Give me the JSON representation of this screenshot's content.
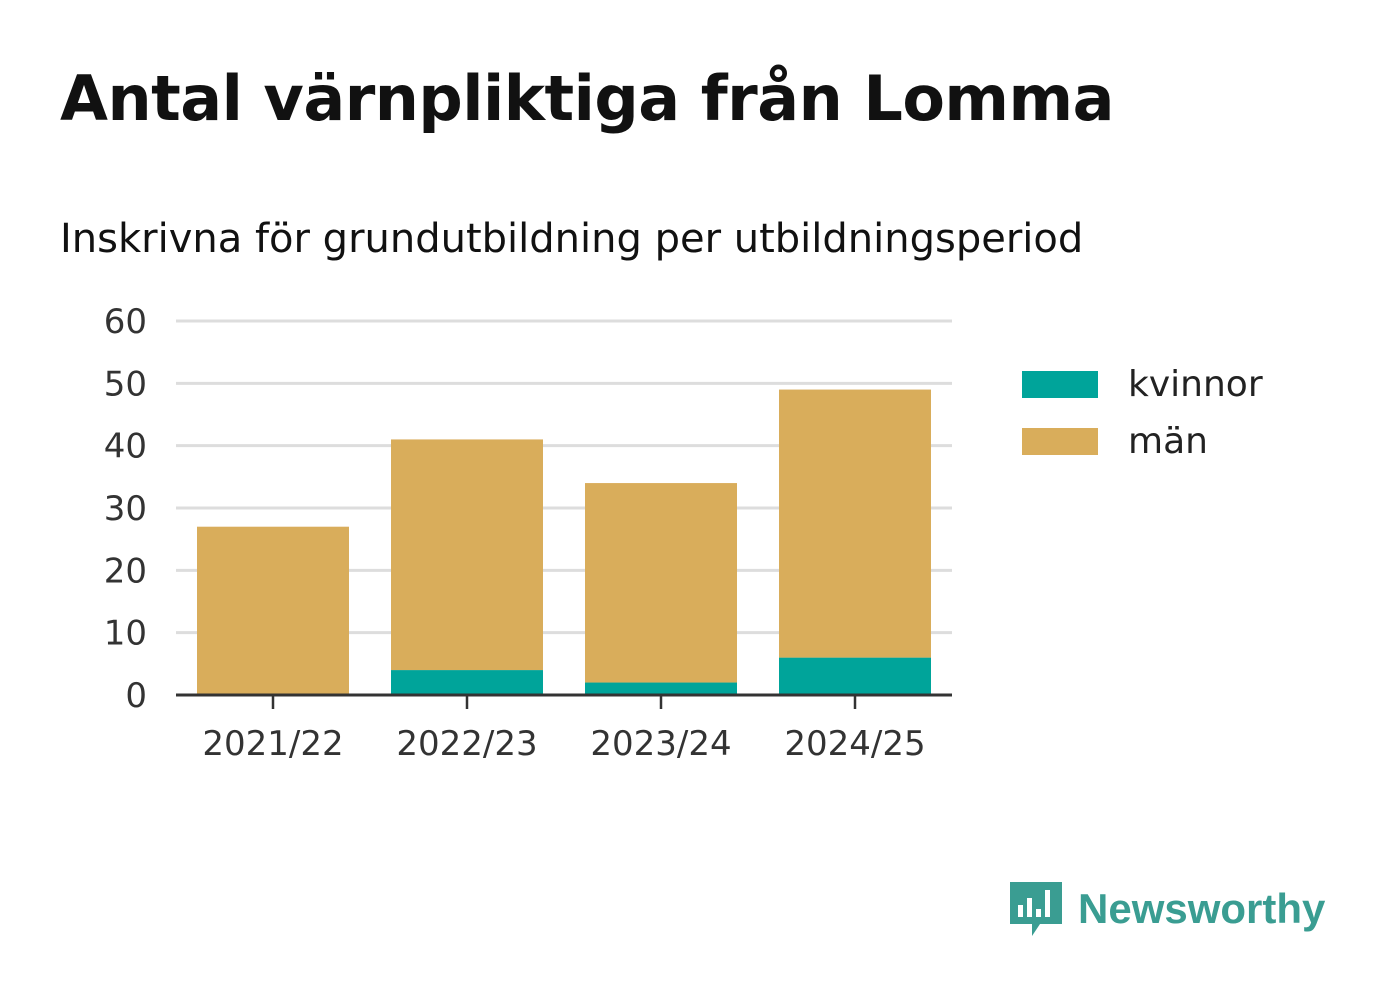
{
  "title": "Antal värnpliktiga från Lomma",
  "subtitle": "Inskrivna för grundutbildning per utbildningsperiod",
  "colors": {
    "kvinnor": "#00a49a",
    "man": "#d9ad5b",
    "grid": "#dddddd",
    "axis": "#333333",
    "brand": "#3a9d92"
  },
  "chart_data": {
    "type": "bar",
    "stacked": true,
    "categories": [
      "2021/22",
      "2022/23",
      "2023/24",
      "2024/25"
    ],
    "series": [
      {
        "name": "kvinnor",
        "values": [
          0,
          4,
          2,
          6
        ]
      },
      {
        "name": "män",
        "values": [
          27,
          37,
          32,
          43
        ]
      }
    ],
    "ylim": [
      0,
      60
    ],
    "yticks": [
      0,
      10,
      20,
      30,
      40,
      50,
      60
    ],
    "xlabel": "",
    "ylabel": "",
    "grid": true,
    "legend_position": "right"
  },
  "legend": [
    {
      "label": "kvinnor",
      "color": "#00a49a"
    },
    {
      "label": "män",
      "color": "#d9ad5b"
    }
  ],
  "brand": {
    "name": "Newsworthy",
    "icon": "newsworthy-logo-icon"
  }
}
